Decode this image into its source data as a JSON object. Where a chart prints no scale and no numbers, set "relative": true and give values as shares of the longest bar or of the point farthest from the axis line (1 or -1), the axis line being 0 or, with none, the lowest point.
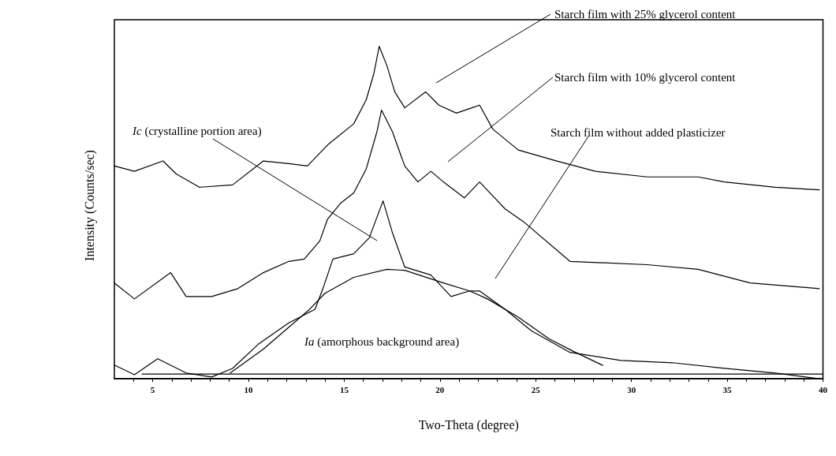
{
  "chart_data": {
    "type": "line",
    "xlabel": "Two-Theta (degree)",
    "ylabel": "Intensity (Counts/sec)",
    "relative": true,
    "xlim": [
      3,
      40
    ],
    "xticks": [
      {
        "value": 4,
        "label": null
      },
      5,
      {
        "value": 6,
        "label": null
      },
      {
        "value": 7,
        "label": null
      },
      {
        "value": 8,
        "label": null
      },
      {
        "value": 9,
        "label": null
      },
      10,
      {
        "value": 11,
        "label": null
      },
      {
        "value": 12,
        "label": null
      },
      {
        "value": 13,
        "label": null
      },
      {
        "value": 14,
        "label": null
      },
      15,
      {
        "value": 16,
        "label": null
      },
      {
        "value": 17,
        "label": null
      },
      {
        "value": 18,
        "label": null
      },
      {
        "value": 19,
        "label": null
      },
      20,
      {
        "value": 21,
        "label": null
      },
      {
        "value": 22,
        "label": null
      },
      {
        "value": 23,
        "label": null
      },
      {
        "value": 24,
        "label": null
      },
      25,
      {
        "value": 26,
        "label": null
      },
      {
        "value": 27,
        "label": null
      },
      {
        "value": 28,
        "label": null
      },
      {
        "value": 29,
        "label": null
      },
      30,
      {
        "value": 31,
        "label": null
      },
      {
        "value": 32,
        "label": null
      },
      {
        "value": 33,
        "label": null
      },
      {
        "value": 34,
        "label": null
      },
      35,
      {
        "value": 36,
        "label": null
      },
      {
        "value": 37,
        "label": null
      },
      {
        "value": 38,
        "label": null
      },
      {
        "value": 39,
        "label": null
      },
      40
    ],
    "grid": false,
    "legend": false,
    "marker": "none",
    "line_style": "solid",
    "series": [
      {
        "name": "Starch film with 25% glycerol content",
        "color": "#000000",
        "x": [
          3.0,
          4.05,
          5.54,
          6.23,
          7.44,
          9.17,
          10.78,
          12.11,
          13.08,
          14.13,
          15.5,
          16.15,
          16.55,
          16.83,
          17.23,
          17.64,
          18.16,
          19.25,
          19.94,
          20.86,
          21.67,
          22.07,
          22.76,
          24.09,
          26.1,
          28.12,
          30.82,
          33.48,
          34.85,
          37.52,
          39.81
        ],
        "values": [
          0.64,
          0.624,
          0.655,
          0.616,
          0.576,
          0.583,
          0.655,
          0.647,
          0.64,
          0.703,
          0.767,
          0.839,
          0.918,
          1.0,
          0.942,
          0.863,
          0.815,
          0.863,
          0.823,
          0.799,
          0.815,
          0.823,
          0.751,
          0.688,
          0.655,
          0.624,
          0.607,
          0.607,
          0.592,
          0.576,
          0.568
        ]
      },
      {
        "name": "Starch film with 10% glycerol content",
        "color": "#000000",
        "x": [
          3.0,
          4.05,
          5.94,
          6.75,
          8.08,
          9.45,
          10.78,
          12.11,
          12.92,
          13.73,
          14.13,
          14.81,
          15.5,
          16.15,
          16.71,
          16.95,
          17.52,
          18.16,
          18.85,
          19.53,
          20.18,
          21.27,
          22.07,
          23.4,
          24.37,
          26.79,
          30.82,
          33.48,
          36.19,
          39.81
        ],
        "values": [
          0.288,
          0.24,
          0.319,
          0.247,
          0.247,
          0.271,
          0.319,
          0.353,
          0.36,
          0.415,
          0.48,
          0.528,
          0.559,
          0.631,
          0.743,
          0.808,
          0.743,
          0.64,
          0.592,
          0.624,
          0.592,
          0.544,
          0.592,
          0.511,
          0.472,
          0.353,
          0.343,
          0.329,
          0.288,
          0.271
        ]
      },
      {
        "name": "Starch film without added plasticizer",
        "color": "#000000",
        "x": [
          3.0,
          4.05,
          5.26,
          6.75,
          8.08,
          9.17,
          10.5,
          12.11,
          13.48,
          13.89,
          14.41,
          15.5,
          16.31,
          17.03,
          17.52,
          18.16,
          19.53,
          20.58,
          21.55,
          22.07,
          23.4,
          24.77,
          26.79,
          29.45,
          32.15,
          34.85,
          37.52,
          39.81
        ],
        "values": [
          0.041,
          0.012,
          0.06,
          0.017,
          0.005,
          0.031,
          0.103,
          0.168,
          0.209,
          0.271,
          0.36,
          0.376,
          0.424,
          0.535,
          0.439,
          0.336,
          0.312,
          0.247,
          0.264,
          0.264,
          0.209,
          0.144,
          0.079,
          0.055,
          0.048,
          0.031,
          0.017,
          0
        ]
      },
      {
        "color": "#000000",
        "x": [
          9.05,
          10.78,
          13.2,
          14.0,
          15.5,
          17.23,
          18.16,
          20.18,
          21.55,
          22.48,
          24.09,
          25.7,
          26.91,
          28.5
        ],
        "values": [
          0.017,
          0.089,
          0.209,
          0.257,
          0.305,
          0.329,
          0.326,
          0.288,
          0.264,
          0.24,
          0.185,
          0.12,
          0.084,
          0.04
        ]
      },
      {
        "color": "#000000",
        "x": [
          4.45,
          40
        ],
        "values": [
          0.014,
          0.014
        ]
      }
    ],
    "annotations": [
      "Ic (crystalline portion area)",
      "Ia (amorphous background area)"
    ]
  }
}
